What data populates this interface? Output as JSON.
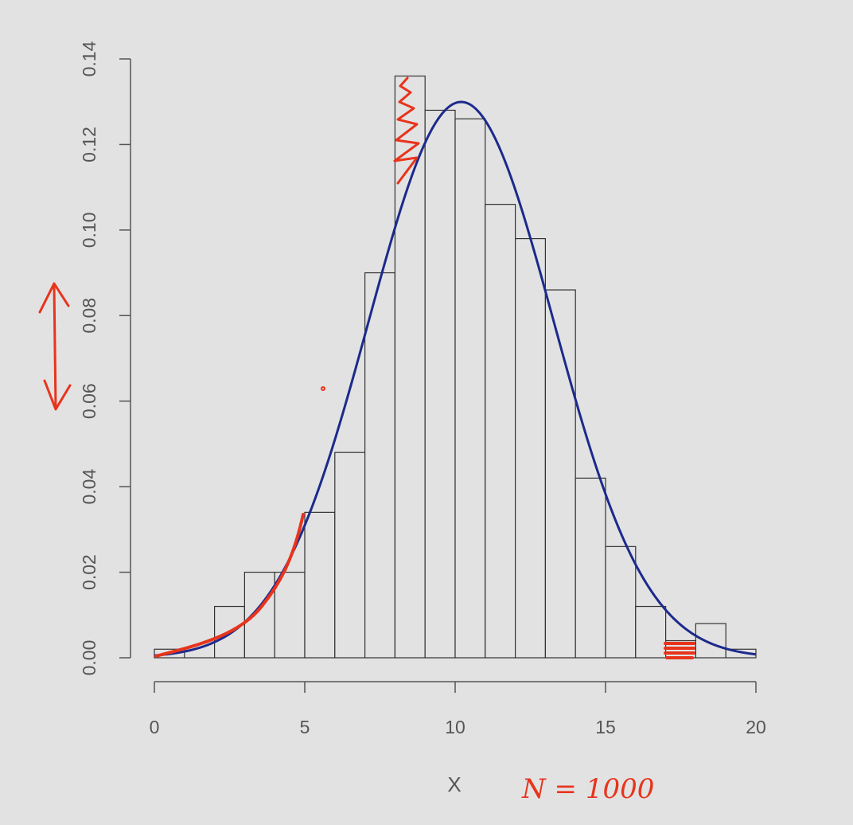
{
  "chart_data": {
    "type": "bar",
    "subtype": "histogram",
    "title": "",
    "xlabel": "X",
    "ylabel": "",
    "xlim": [
      0,
      20
    ],
    "ylim": [
      0,
      0.14
    ],
    "x_ticks": [
      "0",
      "5",
      "10",
      "15",
      "20"
    ],
    "y_ticks": [
      "0.00",
      "0.02",
      "0.04",
      "0.06",
      "0.08",
      "0.10",
      "0.12",
      "0.14"
    ],
    "bin_edges": [
      0,
      1,
      2,
      3,
      4,
      5,
      6,
      7,
      8,
      9,
      10,
      11,
      12,
      13,
      14,
      15,
      16,
      17,
      18,
      19,
      20
    ],
    "density": [
      0.002,
      0.0,
      0.012,
      0.02,
      0.02,
      0.034,
      0.048,
      0.09,
      0.136,
      0.128,
      0.126,
      0.106,
      0.098,
      0.086,
      0.042,
      0.026,
      0.012,
      0.004,
      0.008,
      0.002
    ],
    "curve": {
      "type": "normal-density",
      "mean": 10.2,
      "sd": 3.07,
      "color": "#1c2a8c"
    },
    "grid": false,
    "bar_fill": "#e2e2e2",
    "bar_stroke": "#333333"
  },
  "annotations": {
    "handwritten_note": "N = 1000",
    "ink_color": "#e8341c"
  }
}
